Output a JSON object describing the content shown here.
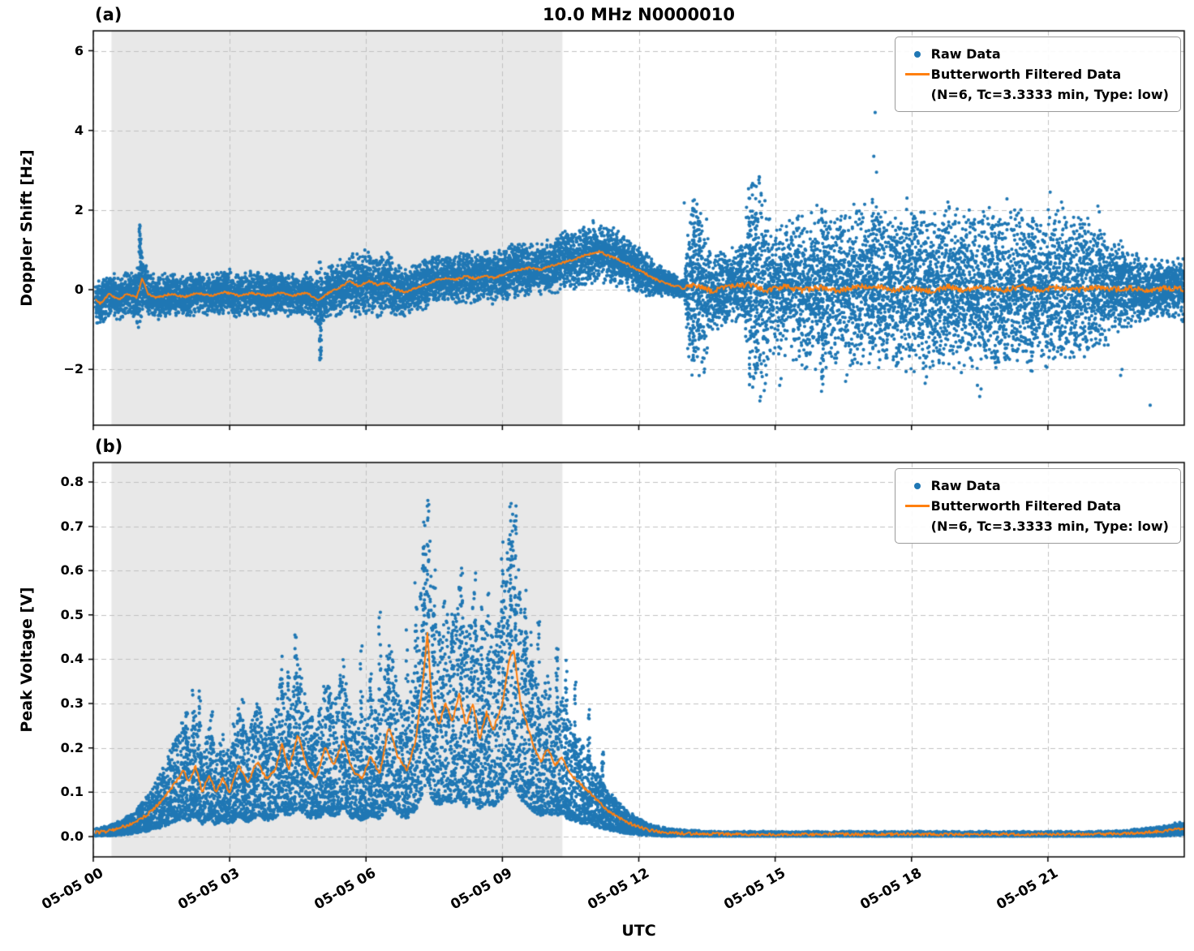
{
  "figure": {
    "title": "10.0 MHz N0000010",
    "xlabel": "UTC",
    "panels": [
      {
        "label": "(a)",
        "ylabel": "Doppler Shift [Hz]"
      },
      {
        "label": "(b)",
        "ylabel": "Peak Voltage [V]"
      }
    ],
    "legend": {
      "raw_label": "Raw Data",
      "filtered_label": "Butterworth Filtered Data",
      "filtered_sublabel": "(N=6, Tc=3.3333 min, Type: low)"
    },
    "colors": {
      "raw": "#1f77b4",
      "filtered": "#ff7f0e",
      "shade": "#e8e8e8",
      "grid": "#c0c0c0",
      "spine": "#000000"
    }
  },
  "chart_data": [
    {
      "type": "scatter",
      "panel": "a",
      "title": "10.0 MHz N0000010",
      "ylabel": "Doppler Shift [Hz]",
      "series": [
        {
          "name": "Raw Data",
          "type": "scatter",
          "color": "#1f77b4"
        },
        {
          "name": "Butterworth Filtered Data (N=6, Tc=3.3333 min, Type: low)",
          "type": "line",
          "color": "#ff7f0e"
        }
      ],
      "xlim_hours": [
        0,
        24
      ],
      "ylim": [
        -3.4,
        6.5
      ],
      "yticks": [
        {
          "v": -2,
          "label": "−2"
        },
        {
          "v": 0,
          "label": "0"
        },
        {
          "v": 2,
          "label": "2"
        },
        {
          "v": 4,
          "label": "4"
        },
        {
          "v": 6,
          "label": "6"
        }
      ],
      "xticks": [
        {
          "hour": 0,
          "label": "05-05 00"
        },
        {
          "hour": 3,
          "label": "05-05 03"
        },
        {
          "hour": 6,
          "label": "05-05 06"
        },
        {
          "hour": 9,
          "label": "05-05 09"
        },
        {
          "hour": 12,
          "label": "05-05 12"
        },
        {
          "hour": 15,
          "label": "05-05 15"
        },
        {
          "hour": 18,
          "label": "05-05 18"
        },
        {
          "hour": 21,
          "label": "05-05 21"
        }
      ],
      "shade_hours": [
        0.4,
        10.32
      ],
      "seed": 42,
      "points_per_hour": 620,
      "x_start": 0.05,
      "mode": "sym",
      "filtered": [
        [
          0,
          -0.2
        ],
        [
          0.15,
          -0.35
        ],
        [
          0.35,
          -0.1
        ],
        [
          0.55,
          -0.25
        ],
        [
          0.75,
          -0.1
        ],
        [
          0.95,
          -0.2
        ],
        [
          1.02,
          0.05
        ],
        [
          1.08,
          0.3
        ],
        [
          1.2,
          -0.1
        ],
        [
          1.4,
          -0.2
        ],
        [
          1.7,
          -0.1
        ],
        [
          2,
          -0.18
        ],
        [
          2.3,
          -0.08
        ],
        [
          2.6,
          -0.15
        ],
        [
          2.9,
          -0.06
        ],
        [
          3.2,
          -0.15
        ],
        [
          3.5,
          -0.08
        ],
        [
          3.8,
          -0.15
        ],
        [
          4.1,
          -0.08
        ],
        [
          4.4,
          -0.14
        ],
        [
          4.7,
          -0.08
        ],
        [
          4.95,
          -0.28
        ],
        [
          5.15,
          -0.1
        ],
        [
          5.45,
          0.08
        ],
        [
          5.65,
          0.22
        ],
        [
          5.85,
          0.08
        ],
        [
          6.05,
          0.22
        ],
        [
          6.25,
          0.12
        ],
        [
          6.45,
          0.18
        ],
        [
          6.65,
          0.02
        ],
        [
          6.85,
          -0.06
        ],
        [
          7.05,
          0.02
        ],
        [
          7.3,
          0.14
        ],
        [
          7.55,
          0.24
        ],
        [
          7.8,
          0.3
        ],
        [
          8,
          0.26
        ],
        [
          8.2,
          0.34
        ],
        [
          8.4,
          0.28
        ],
        [
          8.6,
          0.34
        ],
        [
          8.8,
          0.3
        ],
        [
          9,
          0.36
        ],
        [
          9.2,
          0.46
        ],
        [
          9.4,
          0.5
        ],
        [
          9.6,
          0.55
        ],
        [
          9.8,
          0.5
        ],
        [
          10,
          0.56
        ],
        [
          10.2,
          0.64
        ],
        [
          10.4,
          0.7
        ],
        [
          10.6,
          0.76
        ],
        [
          10.8,
          0.86
        ],
        [
          11,
          0.92
        ],
        [
          11.15,
          0.96
        ],
        [
          11.3,
          0.86
        ],
        [
          11.5,
          0.8
        ],
        [
          11.7,
          0.68
        ],
        [
          11.9,
          0.55
        ],
        [
          12.1,
          0.44
        ],
        [
          12.3,
          0.3
        ],
        [
          12.5,
          0.2
        ],
        [
          12.7,
          0.12
        ],
        [
          13,
          0.05
        ],
        [
          13.3,
          0.12
        ],
        [
          13.6,
          -0.04
        ],
        [
          14,
          0.08
        ],
        [
          14.5,
          0.14
        ],
        [
          14.8,
          -0.02
        ],
        [
          15.2,
          0.08
        ],
        [
          15.6,
          -0.02
        ],
        [
          16,
          0.06
        ],
        [
          16.4,
          -0.04
        ],
        [
          16.8,
          0.08
        ],
        [
          17.2,
          0.1
        ],
        [
          17.6,
          -0.02
        ],
        [
          18,
          0.06
        ],
        [
          18.4,
          -0.04
        ],
        [
          18.8,
          0.08
        ],
        [
          19.2,
          -0.02
        ],
        [
          19.6,
          0.06
        ],
        [
          20,
          -0.02
        ],
        [
          20.4,
          0.08
        ],
        [
          20.8,
          0
        ],
        [
          21.2,
          0.06
        ],
        [
          21.6,
          -0.02
        ],
        [
          22,
          0.06
        ],
        [
          22.4,
          0
        ],
        [
          22.8,
          0.05
        ],
        [
          23.2,
          0
        ],
        [
          23.6,
          0.04
        ],
        [
          24,
          0.02
        ]
      ],
      "spread": [
        [
          0,
          0.32
        ],
        [
          0.95,
          0.32
        ],
        [
          1.02,
          0.7
        ],
        [
          1.12,
          0.32
        ],
        [
          2,
          0.3
        ],
        [
          3,
          0.32
        ],
        [
          4,
          0.3
        ],
        [
          4.88,
          0.32
        ],
        [
          4.98,
          0.6
        ],
        [
          5.1,
          0.32
        ],
        [
          5.4,
          0.4
        ],
        [
          5.8,
          0.46
        ],
        [
          6.2,
          0.46
        ],
        [
          6.6,
          0.42
        ],
        [
          7,
          0.34
        ],
        [
          8,
          0.35
        ],
        [
          9,
          0.38
        ],
        [
          10,
          0.4
        ],
        [
          10.8,
          0.45
        ],
        [
          11.3,
          0.42
        ],
        [
          11.8,
          0.34
        ],
        [
          12.3,
          0.28
        ],
        [
          12.6,
          0.18
        ],
        [
          13,
          0.14
        ],
        [
          13.12,
          1.25
        ],
        [
          13.45,
          1.25
        ],
        [
          13.6,
          0.55
        ],
        [
          14.3,
          0.55
        ],
        [
          14.42,
          1.6
        ],
        [
          14.75,
          1.6
        ],
        [
          14.9,
          0.9
        ],
        [
          15.3,
          1
        ],
        [
          15.8,
          1.15
        ],
        [
          16.3,
          1.05
        ],
        [
          16.8,
          1.15
        ],
        [
          17.3,
          1.1
        ],
        [
          18,
          1.15
        ],
        [
          18.5,
          1.05
        ],
        [
          19,
          1.15
        ],
        [
          19.5,
          1.1
        ],
        [
          20,
          1.15
        ],
        [
          20.5,
          1.05
        ],
        [
          21,
          1.1
        ],
        [
          21.5,
          1.05
        ],
        [
          22,
          0.95
        ],
        [
          22.3,
          0.8
        ],
        [
          22.7,
          0.6
        ],
        [
          23.1,
          0.45
        ],
        [
          23.5,
          0.4
        ],
        [
          24,
          0.45
        ]
      ],
      "streaks": [
        [
          1.03,
          0.3,
          1.72
        ],
        [
          5,
          -1.78,
          -0.4
        ],
        [
          13.2,
          -1.7,
          2.1
        ],
        [
          13.32,
          -1.55,
          1.85
        ],
        [
          14.45,
          -2.2,
          2.3
        ],
        [
          14.58,
          -1.85,
          2.05
        ],
        [
          16.05,
          -2.3,
          1.9
        ],
        [
          17.15,
          -1.6,
          2.6
        ],
        [
          20.65,
          -2.1,
          1.8
        ]
      ],
      "outliers": [
        [
          17.2,
          4.45
        ],
        [
          17.17,
          3.35
        ],
        [
          17.23,
          2.95
        ],
        [
          16.02,
          -2.55
        ],
        [
          19.5,
          -2.68
        ],
        [
          19.45,
          -2.4
        ],
        [
          23.25,
          -2.9
        ],
        [
          21.05,
          2.45
        ],
        [
          21.3,
          2.2
        ],
        [
          22.1,
          2.1
        ],
        [
          14.5,
          2.38
        ],
        [
          13.28,
          2.15
        ],
        [
          15.1,
          -2.4
        ],
        [
          18.3,
          -2.35
        ],
        [
          17.9,
          2.3
        ],
        [
          18.8,
          2.2
        ],
        [
          20.1,
          2.28
        ],
        [
          22.6,
          -2.15
        ],
        [
          13,
          2.18
        ],
        [
          16.55,
          -2.3
        ]
      ],
      "line_jitter": [
        [
          0,
          0.025
        ],
        [
          12.9,
          0.03
        ],
        [
          13.05,
          0.07
        ],
        [
          24,
          0.07
        ]
      ]
    },
    {
      "type": "scatter",
      "panel": "b",
      "ylabel": "Peak Voltage [V]",
      "xlabel": "UTC",
      "series": [
        {
          "name": "Raw Data",
          "type": "scatter",
          "color": "#1f77b4"
        },
        {
          "name": "Butterworth Filtered Data (N=6, Tc=3.3333 min, Type: low)",
          "type": "line",
          "color": "#ff7f0e"
        }
      ],
      "xlim_hours": [
        0,
        24
      ],
      "ylim": [
        -0.046,
        0.844
      ],
      "yticks": [
        {
          "v": 0.0,
          "label": "0.0"
        },
        {
          "v": 0.1,
          "label": "0.1"
        },
        {
          "v": 0.2,
          "label": "0.2"
        },
        {
          "v": 0.3,
          "label": "0.3"
        },
        {
          "v": 0.4,
          "label": "0.4"
        },
        {
          "v": 0.5,
          "label": "0.5"
        },
        {
          "v": 0.6,
          "label": "0.6"
        },
        {
          "v": 0.7,
          "label": "0.7"
        },
        {
          "v": 0.8,
          "label": "0.8"
        }
      ],
      "xticks": [
        {
          "hour": 0,
          "label": "05-05 00"
        },
        {
          "hour": 3,
          "label": "05-05 03"
        },
        {
          "hour": 6,
          "label": "05-05 06"
        },
        {
          "hour": 9,
          "label": "05-05 09"
        },
        {
          "hour": 12,
          "label": "05-05 12"
        },
        {
          "hour": 15,
          "label": "05-05 15"
        },
        {
          "hour": 18,
          "label": "05-05 18"
        },
        {
          "hour": 21,
          "label": "05-05 21"
        }
      ],
      "shade_hours": [
        0.4,
        10.32
      ],
      "seed": 1234,
      "points_per_hour": 620,
      "x_start": 0.05,
      "mode": "pos",
      "filtered": [
        [
          0,
          0.008
        ],
        [
          0.3,
          0.012
        ],
        [
          0.6,
          0.02
        ],
        [
          0.9,
          0.03
        ],
        [
          1.2,
          0.05
        ],
        [
          1.5,
          0.08
        ],
        [
          1.8,
          0.12
        ],
        [
          2,
          0.15
        ],
        [
          2.1,
          0.12
        ],
        [
          2.25,
          0.16
        ],
        [
          2.4,
          0.1
        ],
        [
          2.55,
          0.14
        ],
        [
          2.7,
          0.1
        ],
        [
          2.85,
          0.13
        ],
        [
          3,
          0.1
        ],
        [
          3.2,
          0.16
        ],
        [
          3.4,
          0.12
        ],
        [
          3.6,
          0.17
        ],
        [
          3.8,
          0.13
        ],
        [
          4,
          0.15
        ],
        [
          4.15,
          0.21
        ],
        [
          4.3,
          0.15
        ],
        [
          4.5,
          0.23
        ],
        [
          4.7,
          0.16
        ],
        [
          4.9,
          0.13
        ],
        [
          5.1,
          0.2
        ],
        [
          5.3,
          0.16
        ],
        [
          5.5,
          0.22
        ],
        [
          5.7,
          0.15
        ],
        [
          5.9,
          0.13
        ],
        [
          6.1,
          0.18
        ],
        [
          6.3,
          0.14
        ],
        [
          6.5,
          0.25
        ],
        [
          6.7,
          0.18
        ],
        [
          6.9,
          0.15
        ],
        [
          7.1,
          0.22
        ],
        [
          7.25,
          0.35
        ],
        [
          7.35,
          0.46
        ],
        [
          7.45,
          0.3
        ],
        [
          7.6,
          0.25
        ],
        [
          7.75,
          0.3
        ],
        [
          7.9,
          0.26
        ],
        [
          8.05,
          0.32
        ],
        [
          8.2,
          0.25
        ],
        [
          8.35,
          0.3
        ],
        [
          8.5,
          0.22
        ],
        [
          8.65,
          0.28
        ],
        [
          8.8,
          0.24
        ],
        [
          9,
          0.3
        ],
        [
          9.15,
          0.4
        ],
        [
          9.25,
          0.42
        ],
        [
          9.4,
          0.3
        ],
        [
          9.55,
          0.25
        ],
        [
          9.7,
          0.2
        ],
        [
          9.85,
          0.17
        ],
        [
          10,
          0.2
        ],
        [
          10.15,
          0.16
        ],
        [
          10.3,
          0.18
        ],
        [
          10.5,
          0.14
        ],
        [
          10.7,
          0.12
        ],
        [
          10.9,
          0.1
        ],
        [
          11.1,
          0.08
        ],
        [
          11.3,
          0.06
        ],
        [
          11.6,
          0.04
        ],
        [
          11.9,
          0.025
        ],
        [
          12.2,
          0.015
        ],
        [
          12.5,
          0.01
        ],
        [
          13,
          0.007
        ],
        [
          14,
          0.005
        ],
        [
          16,
          0.005
        ],
        [
          18,
          0.005
        ],
        [
          20,
          0.005
        ],
        [
          22,
          0.005
        ],
        [
          22.5,
          0.006
        ],
        [
          23,
          0.008
        ],
        [
          23.5,
          0.012
        ],
        [
          24,
          0.018
        ]
      ],
      "spikes": [
        [
          2.2,
          0.37
        ],
        [
          2.35,
          0.33
        ],
        [
          2.6,
          0.3
        ],
        [
          3.3,
          0.33
        ],
        [
          3.55,
          0.3
        ],
        [
          4.15,
          0.42
        ],
        [
          4.3,
          0.38
        ],
        [
          4.45,
          0.46
        ],
        [
          5.2,
          0.35
        ],
        [
          5.55,
          0.33
        ],
        [
          5.9,
          0.44
        ],
        [
          6.3,
          0.55
        ],
        [
          6.5,
          0.42
        ],
        [
          6.9,
          0.5
        ],
        [
          7.1,
          0.6
        ],
        [
          7.28,
          0.74
        ],
        [
          7.36,
          0.8
        ],
        [
          7.5,
          0.62
        ],
        [
          7.9,
          0.55
        ],
        [
          8.1,
          0.65
        ],
        [
          8.4,
          0.6
        ],
        [
          8.7,
          0.55
        ],
        [
          9,
          0.7
        ],
        [
          9.18,
          0.8
        ],
        [
          9.28,
          0.76
        ],
        [
          9.5,
          0.6
        ],
        [
          9.8,
          0.5
        ],
        [
          10.2,
          0.45
        ],
        [
          10.6,
          0.35
        ],
        [
          10.9,
          0.3
        ],
        [
          11.2,
          0.2
        ],
        [
          2.05,
          0.3
        ],
        [
          3.1,
          0.28
        ],
        [
          4.8,
          0.3
        ],
        [
          6.1,
          0.4
        ],
        [
          8.55,
          0.52
        ],
        [
          9.65,
          0.5
        ],
        [
          10.4,
          0.4
        ]
      ],
      "line_jitter": [
        [
          0,
          0.004
        ],
        [
          24,
          0.003
        ]
      ]
    }
  ]
}
